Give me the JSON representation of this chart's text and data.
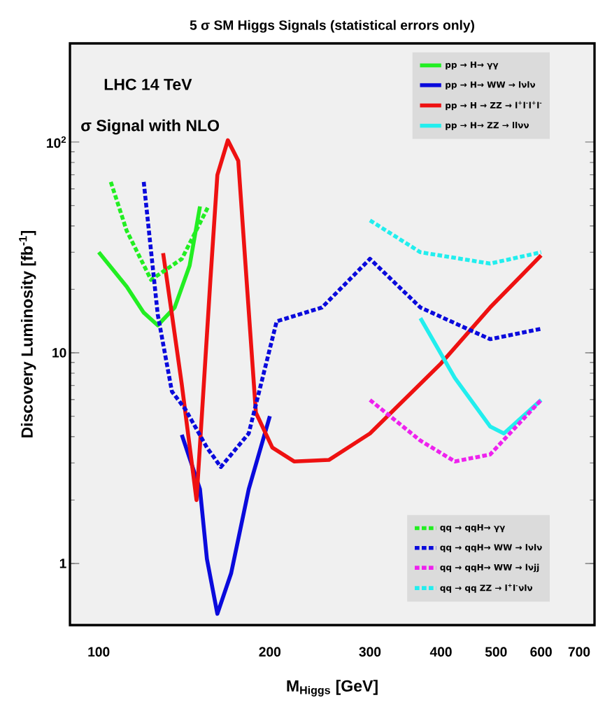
{
  "chart_data": {
    "type": "line",
    "title": "5 σ SM Higgs Signals (statistical errors only)",
    "xlabel": "M$_{Higgs}$ [GeV]",
    "ylabel": "Discovery Luminosity [fb$^{-1}$]",
    "annotations": [
      "LHC 14 TeV",
      "σ Signal with NLO"
    ],
    "log": "xy",
    "xlim": [
      89,
      745
    ],
    "ylim": [
      0.51,
      294
    ],
    "xticks": [
      100,
      200,
      300,
      400,
      500,
      600,
      700
    ],
    "yticks": [
      1,
      10,
      {
        "value": 100,
        "label": "10$^{2}$"
      }
    ],
    "legend": "right",
    "marker": "none",
    "line_style": "solid",
    "grid": false,
    "series": [
      {
        "name": "pp → H→ γγ",
        "color": "#22ee22",
        "x": [
          100,
          112,
          120,
          127,
          136,
          144.5,
          150.7
        ],
        "values": [
          30,
          20.6,
          15.5,
          13.5,
          16.4,
          25.9,
          49.5
        ]
      },
      {
        "name": "pp → H→ WW → lνlν",
        "color": "#0a0adc",
        "x": [
          140,
          150.7,
          155,
          161.7,
          171,
          183.6,
          200
        ],
        "values": [
          4.08,
          2.25,
          1.05,
          0.577,
          0.9,
          2.25,
          5.0
        ]
      },
      {
        "name": "pp → H → ZZ → l$^{+}$l$^{-}$l$^{+}$l$^{-}$",
        "color": "#ee1111",
        "x": [
          129.8,
          134.5,
          140,
          148.6,
          157.2,
          161.7,
          168.7,
          176,
          182,
          189,
          202,
          220.6,
          254,
          300,
          400,
          488,
          600
        ],
        "values": [
          29.7,
          15.2,
          7.07,
          2.0,
          22.2,
          69.8,
          102,
          81.5,
          22.2,
          5.2,
          3.55,
          3.05,
          3.1,
          4.14,
          8.9,
          16.4,
          29
        ]
      },
      {
        "name": "pp → H→ ZZ → llνν",
        "color": "#22eeee",
        "x": [
          368,
          423,
          488,
          516,
          600
        ],
        "values": [
          14.6,
          7.6,
          4.47,
          4.14,
          5.97
        ]
      },
      {
        "name": "qq → qqH→ γγ",
        "color": "#22ee22",
        "line_style": "dashed",
        "x": [
          105,
          112,
          123.6,
          140,
          155.9
        ],
        "values": [
          64.7,
          37.9,
          22.2,
          27.9,
          49.5
        ]
      },
      {
        "name": "qq → qqH→ WW → lνlν",
        "color": "#0a0adc",
        "line_style": "dashed",
        "x": [
          120,
          127,
          134.5,
          142,
          155,
          164,
          183.6,
          205.6,
          247,
          300,
          368,
          488,
          600
        ],
        "values": [
          64.7,
          15.2,
          6.55,
          5.4,
          3.55,
          2.87,
          4.14,
          14.1,
          16.4,
          27.9,
          16.4,
          11.6,
          13.0
        ]
      },
      {
        "name": "qq → qqH→ WW → lνjj",
        "color": "#ee22ee",
        "line_style": "dashed",
        "x": [
          300,
          368,
          423,
          488,
          600
        ],
        "values": [
          5.97,
          3.83,
          3.05,
          3.29,
          5.97
        ]
      },
      {
        "name": "qq → qq ZZ → l$^{+}$l$^{-}$νlν",
        "color": "#22eeee",
        "line_style": "dashed",
        "x": [
          300,
          368,
          488,
          600
        ],
        "values": [
          42.5,
          30,
          26.5,
          30
        ]
      }
    ]
  }
}
